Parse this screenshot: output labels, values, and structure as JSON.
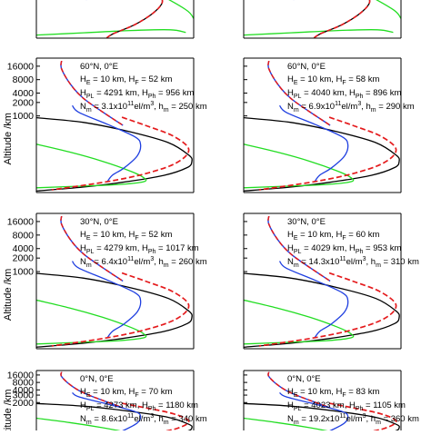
{
  "figure": {
    "ylabel": "Altitude /km",
    "colors": {
      "black": "#000000",
      "green": "#22dd22",
      "blue": "#1f3fe0",
      "red": "#e41a1c",
      "axes": "#000000"
    }
  },
  "chart_data": [
    {
      "type": "line",
      "row": 0,
      "col": 0,
      "panel": "top-left (clipped)",
      "title": "",
      "annotations": [],
      "yticks": []
    },
    {
      "type": "line",
      "row": 0,
      "col": 1,
      "panel": "top-right (clipped)",
      "title": "",
      "annotations": [],
      "yticks": []
    },
    {
      "type": "line",
      "row": 1,
      "col": 0,
      "title": "60°N, 0°E",
      "annotations": [
        "H_E = 10 km, H_F = 52 km",
        "H_PL = 4291 km, H_Ph = 956 km",
        "N_m = 3.1x10^11 el/m^3, h_m = 250 km"
      ],
      "annotation_lines": [
        {
          "segs": [
            [
              "H",
              ""
            ],
            [
              "E",
              "sub"
            ],
            [
              " = 10 km, H",
              ""
            ],
            [
              "F",
              "sub"
            ],
            [
              " = 52 km",
              ""
            ]
          ]
        },
        {
          "segs": [
            [
              "H",
              ""
            ],
            [
              "PL",
              "sub"
            ],
            [
              " = 4291 km, H",
              ""
            ],
            [
              "Ph",
              "sub"
            ],
            [
              " = 956 km",
              ""
            ]
          ]
        },
        {
          "segs": [
            [
              "N",
              ""
            ],
            [
              "m",
              "sub"
            ],
            [
              " = 3.1x10",
              ""
            ],
            [
              "11",
              "sup"
            ],
            [
              "el/m",
              ""
            ],
            [
              "3",
              "sup"
            ],
            [
              ", h",
              ""
            ],
            [
              "m",
              "sub"
            ],
            [
              " = 250 km",
              ""
            ]
          ]
        }
      ],
      "ylabel": "Altitude /km",
      "yticks": [
        "16000",
        "8000",
        "4000",
        "2000",
        "1000"
      ]
    },
    {
      "type": "line",
      "row": 1,
      "col": 1,
      "title": "60°N, 0°E",
      "annotations": [
        "H_E = 10 km, H_F = 58 km",
        "H_PL = 4040 km, H_Ph = 896 km",
        "N_m = 6.9x10^11 el/m^3, h_m = 290 km"
      ],
      "annotation_lines": [
        {
          "segs": [
            [
              "H",
              ""
            ],
            [
              "E",
              "sub"
            ],
            [
              " = 10 km, H",
              ""
            ],
            [
              "F",
              "sub"
            ],
            [
              " = 58 km",
              ""
            ]
          ]
        },
        {
          "segs": [
            [
              "H",
              ""
            ],
            [
              "PL",
              "sub"
            ],
            [
              " = 4040 km, H",
              ""
            ],
            [
              "Ph",
              "sub"
            ],
            [
              " = 896 km",
              ""
            ]
          ]
        },
        {
          "segs": [
            [
              "N",
              ""
            ],
            [
              "m",
              "sub"
            ],
            [
              " = 6.9x10",
              ""
            ],
            [
              "11",
              "sup"
            ],
            [
              "el/m",
              ""
            ],
            [
              "3",
              "sup"
            ],
            [
              ", h",
              ""
            ],
            [
              "m",
              "sub"
            ],
            [
              " = 290 km",
              ""
            ]
          ]
        }
      ],
      "yticks": [
        "16000",
        "8000",
        "4000",
        "2000",
        "1000"
      ]
    },
    {
      "type": "line",
      "row": 2,
      "col": 0,
      "title": "30°N, 0°E",
      "annotations": [
        "H_E = 10 km, H_F = 52 km",
        "H_PL = 4279 km, H_Ph = 1017 km",
        "N_m = 6.4x10^11 el/m^3, h_m = 260 km"
      ],
      "annotation_lines": [
        {
          "segs": [
            [
              "H",
              ""
            ],
            [
              "E",
              "sub"
            ],
            [
              " = 10 km, H",
              ""
            ],
            [
              "F",
              "sub"
            ],
            [
              " = 52 km",
              ""
            ]
          ]
        },
        {
          "segs": [
            [
              "H",
              ""
            ],
            [
              "PL",
              "sub"
            ],
            [
              " = 4279 km, H",
              ""
            ],
            [
              "Ph",
              "sub"
            ],
            [
              " = 1017 km",
              ""
            ]
          ]
        },
        {
          "segs": [
            [
              "N",
              ""
            ],
            [
              "m",
              "sub"
            ],
            [
              " = 6.4x10",
              ""
            ],
            [
              "11",
              "sup"
            ],
            [
              "el/m",
              ""
            ],
            [
              "3",
              "sup"
            ],
            [
              ", h",
              ""
            ],
            [
              "m",
              "sub"
            ],
            [
              " = 260 km",
              ""
            ]
          ]
        }
      ],
      "ylabel": "Altitude /km",
      "yticks": [
        "16000",
        "8000",
        "4000",
        "2000",
        "1000"
      ]
    },
    {
      "type": "line",
      "row": 2,
      "col": 1,
      "title": "30°N, 0°E",
      "annotations": [
        "H_E = 10 km, H_F = 60 km",
        "H_PL = 4029 km, H_Ph = 953 km",
        "N_m = 14.3x10^11 el/m^3, h_m = 310 km"
      ],
      "annotation_lines": [
        {
          "segs": [
            [
              "H",
              ""
            ],
            [
              "E",
              "sub"
            ],
            [
              " = 10 km, H",
              ""
            ],
            [
              "F",
              "sub"
            ],
            [
              " = 60 km",
              ""
            ]
          ]
        },
        {
          "segs": [
            [
              "H",
              ""
            ],
            [
              "PL",
              "sub"
            ],
            [
              " = 4029 km, H",
              ""
            ],
            [
              "Ph",
              "sub"
            ],
            [
              " = 953 km",
              ""
            ]
          ]
        },
        {
          "segs": [
            [
              "N",
              ""
            ],
            [
              "m",
              "sub"
            ],
            [
              " = 14.3x10",
              ""
            ],
            [
              "11",
              "sup"
            ],
            [
              "el/m",
              ""
            ],
            [
              "3",
              "sup"
            ],
            [
              ", h",
              ""
            ],
            [
              "m",
              "sub"
            ],
            [
              " = 310 km",
              ""
            ]
          ]
        }
      ],
      "yticks": [
        "16000",
        "8000",
        "4000",
        "2000",
        "1000"
      ]
    },
    {
      "type": "line",
      "row": 3,
      "col": 0,
      "title": "0°N, 0°E",
      "annotations": [
        "H_E = 10 km, H_F = 70 km",
        "H_PL = 4273 km, H_Ph = 1180 km",
        "N_m = 8.6x10^11 el/m^3, h_m = 340 km"
      ],
      "annotation_lines": [
        {
          "segs": [
            [
              "H",
              ""
            ],
            [
              "E",
              "sub"
            ],
            [
              " = 10 km, H",
              ""
            ],
            [
              "F",
              "sub"
            ],
            [
              " = 70 km",
              ""
            ]
          ]
        },
        {
          "segs": [
            [
              "H",
              ""
            ],
            [
              "PL",
              "sub"
            ],
            [
              " = 4273 km, H",
              ""
            ],
            [
              "Ph",
              "sub"
            ],
            [
              " = 1180 km",
              ""
            ]
          ]
        },
        {
          "segs": [
            [
              "N",
              ""
            ],
            [
              "m",
              "sub"
            ],
            [
              " = 8.6x10",
              ""
            ],
            [
              "11",
              "sup"
            ],
            [
              "el/m",
              ""
            ],
            [
              "3",
              "sup"
            ],
            [
              ", h",
              ""
            ],
            [
              "m",
              "sub"
            ],
            [
              " = 340 km",
              ""
            ]
          ]
        }
      ],
      "ylabel": "Altitude /km",
      "yticks": [
        "16000",
        "8000",
        "4000",
        "3000",
        "2000"
      ]
    },
    {
      "type": "line",
      "row": 3,
      "col": 1,
      "title": "0°N, 0°E",
      "annotations": [
        "H_E = 10 km, H_F = 83 km",
        "H_PL = 4023 km, H_Ph = 1105 km",
        "N_m = 19.2x10^11 el/m^3, h_m = 360 km"
      ],
      "annotation_lines": [
        {
          "segs": [
            [
              "H",
              ""
            ],
            [
              "E",
              "sub"
            ],
            [
              " = 10 km, H",
              ""
            ],
            [
              "F",
              "sub"
            ],
            [
              " = 83 km",
              ""
            ]
          ]
        },
        {
          "segs": [
            [
              "H",
              ""
            ],
            [
              "PL",
              "sub"
            ],
            [
              " = 4023 km, H",
              ""
            ],
            [
              "Ph",
              "sub"
            ],
            [
              " = 1105 km",
              ""
            ]
          ]
        },
        {
          "segs": [
            [
              "N",
              ""
            ],
            [
              "m",
              "sub"
            ],
            [
              " = 19.2x10",
              ""
            ],
            [
              "11",
              "sup"
            ],
            [
              "el/m",
              ""
            ],
            [
              "3",
              "sup"
            ],
            [
              ", h",
              ""
            ],
            [
              "m",
              "sub"
            ],
            [
              " = 360 km",
              ""
            ]
          ]
        }
      ],
      "yticks": [
        "16000",
        "8000",
        "4000",
        "3000",
        "2000"
      ]
    }
  ]
}
